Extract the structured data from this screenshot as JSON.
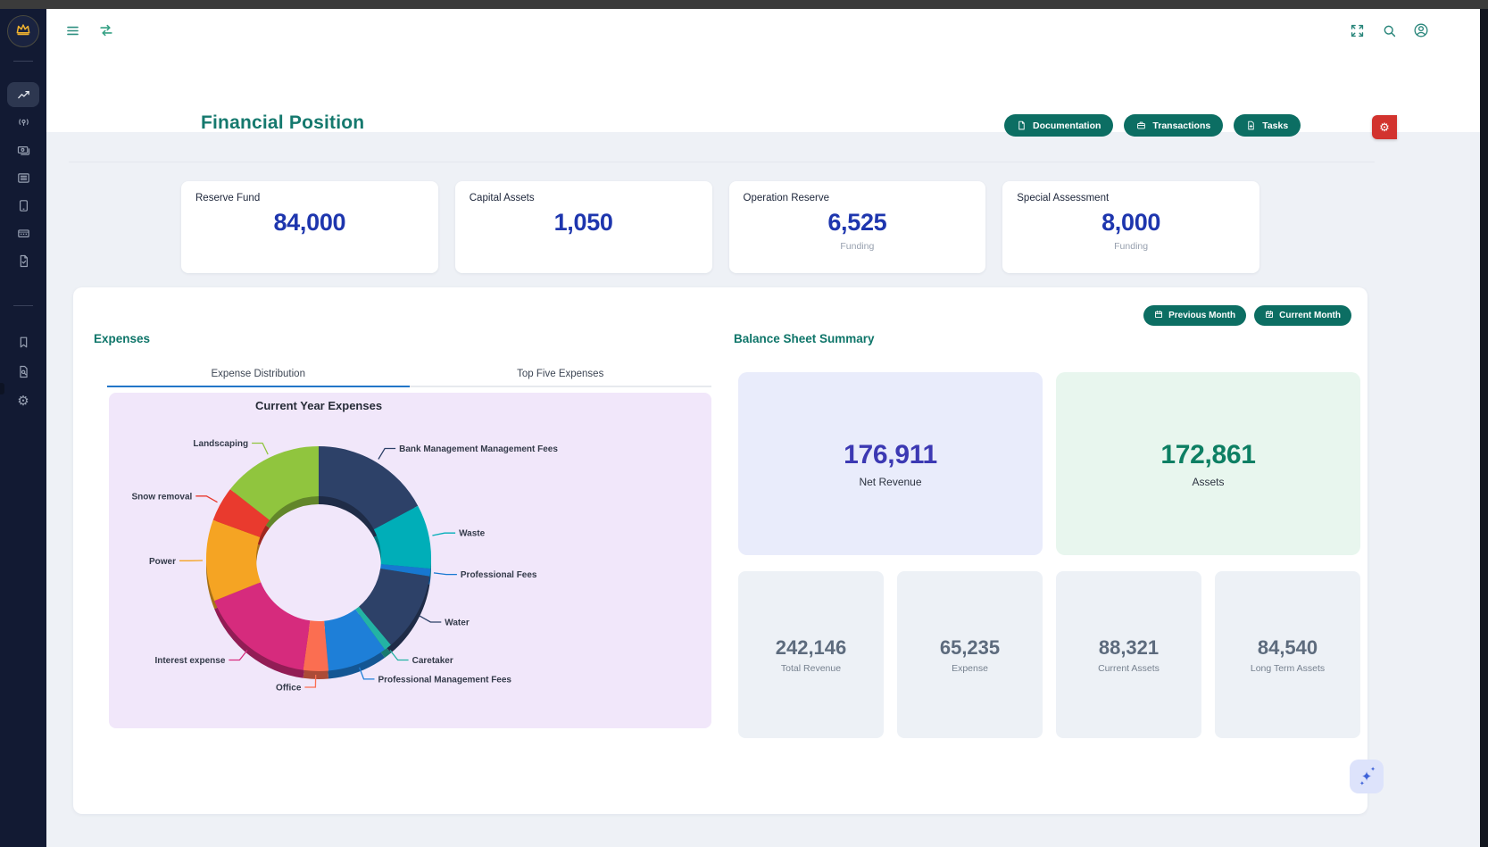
{
  "colors": {
    "accent_teal": "#0e7569",
    "button_teal": "#0c6e63",
    "stat_value_blue": "#1e36ae",
    "sidebar_bg": "#121a33",
    "content_bg": "#eef1f6",
    "chart_panel_bg": "#f1e7fa",
    "net_revenue_bg": "#e9ecfb",
    "net_revenue_text": "#3c39b3",
    "assets_bg": "#e8f6ee",
    "assets_text": "#0d7f63",
    "muted_card_bg": "#edf1f6",
    "muted_value": "#5d6b7d",
    "alert_red": "#d2332e",
    "tab_active_underline": "#2276c8"
  },
  "sidebar": {
    "logo_icon": "crown-icon",
    "nav_items": [
      {
        "icon": "trending-chart-icon",
        "active": true
      },
      {
        "icon": "beacon-person-icon",
        "active": false
      },
      {
        "icon": "cash-icon",
        "active": false
      },
      {
        "icon": "list-rows-icon",
        "active": false
      },
      {
        "icon": "tablet-icon",
        "active": false
      },
      {
        "icon": "calculator-icon",
        "active": false
      },
      {
        "icon": "file-check-icon",
        "active": false
      }
    ],
    "footer_items": [
      {
        "icon": "bookmark-icon"
      },
      {
        "icon": "file-search-icon"
      },
      {
        "icon": "settings-gear-icon"
      }
    ]
  },
  "topbar": {
    "left_icons": [
      {
        "icon": "hamburger-menu-icon"
      },
      {
        "icon": "swap-horizontal-icon"
      }
    ],
    "right_icons": [
      {
        "icon": "fullscreen-icon"
      },
      {
        "icon": "search-icon"
      },
      {
        "icon": "account-icon"
      }
    ]
  },
  "header": {
    "title": "Financial Position",
    "actions": [
      {
        "label": "Documentation",
        "icon": "document-icon"
      },
      {
        "label": "Transactions",
        "icon": "briefcase-icon"
      },
      {
        "label": "Tasks",
        "icon": "task-file-icon"
      }
    ]
  },
  "stat_cards": [
    {
      "label": "Reserve Fund",
      "value": "84,000",
      "sublabel": ""
    },
    {
      "label": "Capital Assets",
      "value": "1,050",
      "sublabel": ""
    },
    {
      "label": "Operation Reserve",
      "value": "6,525",
      "sublabel": "Funding"
    },
    {
      "label": "Special Assessment",
      "value": "8,000",
      "sublabel": "Funding"
    }
  ],
  "expenses": {
    "heading": "Expenses",
    "tabs": [
      {
        "label": "Expense Distribution",
        "active": true
      },
      {
        "label": "Top Five Expenses",
        "active": false
      }
    ]
  },
  "balance_sheet": {
    "heading": "Balance Sheet Summary",
    "month_buttons": [
      {
        "label": "Previous Month",
        "icon": "calendar-icon"
      },
      {
        "label": "Current Month",
        "icon": "calendar-check-icon"
      }
    ],
    "primary_cards": [
      {
        "value": "176,911",
        "label": "Net Revenue"
      },
      {
        "value": "172,861",
        "label": "Assets"
      }
    ],
    "secondary_cards": [
      {
        "value": "242,146",
        "label": "Total Revenue"
      },
      {
        "value": "65,235",
        "label": "Expense"
      },
      {
        "value": "88,321",
        "label": "Current Assets"
      },
      {
        "value": "84,540",
        "label": "Long Term Assets"
      }
    ]
  },
  "floating": {
    "settings_icon": "settings-gear-icon",
    "ai_icon": "sparkles-icon"
  },
  "chart_data": {
    "type": "pie",
    "variant": "donut-3d",
    "title": "Current Year Expenses",
    "legend_position": "outside-callout-labels",
    "start_angle_deg": -90,
    "direction": "clockwise",
    "slices": [
      {
        "label": "Bank Management Management Fees",
        "share_pct": 17.2,
        "color": "#2d4168"
      },
      {
        "label": "Waste",
        "share_pct": 9.2,
        "color": "#00aeb8"
      },
      {
        "label": "Professional Fees",
        "share_pct": 1.1,
        "color": "#1778d1"
      },
      {
        "label": "Water",
        "share_pct": 11.4,
        "color": "#2d4168"
      },
      {
        "label": "Caretaker",
        "share_pct": 1.1,
        "color": "#23b3a4"
      },
      {
        "label": "Professional Management Fees",
        "share_pct": 8.6,
        "color": "#1e7fd8"
      },
      {
        "label": "Office",
        "share_pct": 3.6,
        "color": "#fb6e51"
      },
      {
        "label": "Interest expense",
        "share_pct": 16.7,
        "color": "#d62b7d"
      },
      {
        "label": "Power",
        "share_pct": 11.7,
        "color": "#f5a423"
      },
      {
        "label": "Snow removal",
        "share_pct": 5.0,
        "color": "#e93a2e"
      },
      {
        "label": "Landscaping",
        "share_pct": 14.4,
        "color": "#90c53e"
      }
    ]
  }
}
